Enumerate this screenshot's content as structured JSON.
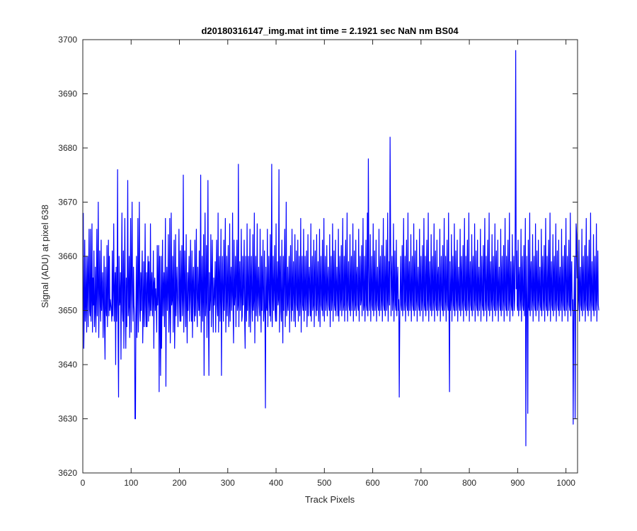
{
  "chart_data": {
    "type": "line",
    "title": "d20180316147_img.mat int time = 2.1921 sec  NaN nm BS04",
    "xlabel": "Track Pixels",
    "ylabel": "Signal (ADU) at pixel 638",
    "xlim": [
      0,
      1024
    ],
    "ylim": [
      3620,
      3700
    ],
    "xticks": [
      0,
      100,
      200,
      300,
      400,
      500,
      600,
      700,
      800,
      900,
      1000
    ],
    "yticks": [
      3620,
      3630,
      3640,
      3650,
      3660,
      3670,
      3680,
      3690,
      3700
    ],
    "grid": false,
    "legend": null,
    "series": [
      {
        "color": "#0000ff",
        "x_start": 1,
        "x_step": 1,
        "values": [
          3668,
          3643,
          3650,
          3663,
          3648,
          3651,
          3660,
          3646,
          3654,
          3660,
          3647,
          3656,
          3665,
          3650,
          3649,
          3665,
          3648,
          3652,
          3666,
          3646,
          3656,
          3651,
          3661,
          3647,
          3650,
          3658,
          3646,
          3652,
          3665,
          3649,
          3655,
          3670,
          3645,
          3653,
          3661,
          3651,
          3648,
          3663,
          3650,
          3654,
          3657,
          3645,
          3652,
          3660,
          3647,
          3641,
          3658,
          3651,
          3649,
          3662,
          3647,
          3654,
          3663,
          3649,
          3660,
          3650,
          3652,
          3651,
          3650,
          3648,
          3661,
          3649,
          3654,
          3666,
          3648,
          3653,
          3657,
          3640,
          3658,
          3648,
          3652,
          3676,
          3646,
          3634,
          3660,
          3651,
          3652,
          3657,
          3641,
          3656,
          3668,
          3650,
          3648,
          3661,
          3643,
          3654,
          3667,
          3651,
          3643,
          3656,
          3647,
          3655,
          3674,
          3649,
          3651,
          3660,
          3645,
          3655,
          3667,
          3646,
          3656,
          3670,
          3653,
          3648,
          3658,
          3651,
          3649,
          3658,
          3630,
          3651,
          3660,
          3645,
          3653,
          3667,
          3646,
          3655,
          3670,
          3650,
          3648,
          3657,
          3650,
          3656,
          3661,
          3644,
          3650,
          3659,
          3647,
          3652,
          3666,
          3651,
          3647,
          3657,
          3647,
          3655,
          3660,
          3648,
          3659,
          3652,
          3649,
          3666,
          3650,
          3654,
          3657,
          3649,
          3652,
          3661,
          3643,
          3655,
          3656,
          3650,
          3654,
          3651,
          3646,
          3662,
          3651,
          3654,
          3662,
          3635,
          3660,
          3649,
          3638,
          3660,
          3643,
          3652,
          3663,
          3649,
          3654,
          3657,
          3647,
          3655,
          3667,
          3636,
          3654,
          3658,
          3650,
          3654,
          3664,
          3646,
          3651,
          3667,
          3644,
          3650,
          3668,
          3651,
          3652,
          3660,
          3646,
          3655,
          3663,
          3643,
          3650,
          3664,
          3649,
          3654,
          3658,
          3652,
          3647,
          3655,
          3665,
          3652,
          3648,
          3661,
          3648,
          3654,
          3662,
          3649,
          3652,
          3675,
          3646,
          3654,
          3661,
          3652,
          3647,
          3664,
          3651,
          3644,
          3657,
          3650,
          3655,
          3660,
          3648,
          3653,
          3663,
          3652,
          3648,
          3661,
          3645,
          3655,
          3658,
          3651,
          3648,
          3663,
          3649,
          3654,
          3665,
          3650,
          3647,
          3658,
          3653,
          3650,
          3661,
          3649,
          3654,
          3675,
          3646,
          3652,
          3660,
          3648,
          3653,
          3664,
          3638,
          3655,
          3668,
          3649,
          3652,
          3662,
          3645,
          3655,
          3674,
          3649,
          3638,
          3657,
          3650,
          3652,
          3664,
          3647,
          3656,
          3663,
          3651,
          3646,
          3656,
          3651,
          3653,
          3659,
          3646,
          3655,
          3663,
          3651,
          3649,
          3668,
          3646,
          3656,
          3660,
          3648,
          3653,
          3665,
          3638,
          3654,
          3660,
          3652,
          3648,
          3663,
          3650,
          3656,
          3667,
          3646,
          3652,
          3660,
          3649,
          3655,
          3662,
          3647,
          3651,
          3666,
          3648,
          3655,
          3658,
          3650,
          3653,
          3668,
          3650,
          3644,
          3663,
          3651,
          3653,
          3660,
          3647,
          3656,
          3663,
          3650,
          3651,
          3677,
          3647,
          3655,
          3659,
          3650,
          3653,
          3665,
          3648,
          3649,
          3660,
          3651,
          3655,
          3663,
          3648,
          3643,
          3660,
          3652,
          3648,
          3666,
          3650,
          3654,
          3660,
          3647,
          3652,
          3665,
          3646,
          3655,
          3660,
          3651,
          3648,
          3664,
          3650,
          3652,
          3668,
          3644,
          3655,
          3660,
          3649,
          3653,
          3666,
          3648,
          3654,
          3658,
          3651,
          3649,
          3665,
          3652,
          3646,
          3660,
          3650,
          3655,
          3663,
          3648,
          3650,
          3661,
          3649,
          3632,
          3658,
          3651,
          3650,
          3665,
          3647,
          3654,
          3660,
          3652,
          3649,
          3664,
          3648,
          3655,
          3677,
          3647,
          3652,
          3660,
          3650,
          3654,
          3662,
          3650,
          3648,
          3666,
          3648,
          3654,
          3659,
          3651,
          3652,
          3676,
          3646,
          3655,
          3660,
          3650,
          3648,
          3663,
          3652,
          3644,
          3660,
          3650,
          3656,
          3665,
          3647,
          3653,
          3670,
          3649,
          3651,
          3658,
          3650,
          3654,
          3660,
          3646,
          3655,
          3662,
          3651,
          3648,
          3665,
          3650,
          3654,
          3659,
          3648,
          3652,
          3664,
          3647,
          3655,
          3661,
          3651,
          3650,
          3663,
          3648,
          3654,
          3660,
          3649,
          3652,
          3667,
          3646,
          3655,
          3660,
          3651,
          3650,
          3665,
          3648,
          3653,
          3660,
          3650,
          3654,
          3661,
          3647,
          3652,
          3664,
          3649,
          3655,
          3658,
          3652,
          3649,
          3666,
          3648,
          3654,
          3660,
          3650,
          3651,
          3663,
          3647,
          3656,
          3661,
          3651,
          3649,
          3664,
          3650,
          3654,
          3659,
          3648,
          3652,
          3665,
          3647,
          3655,
          3660,
          3651,
          3650,
          3663,
          3649,
          3653,
          3667,
          3648,
          3654,
          3660,
          3650,
          3652,
          3662,
          3649,
          3655,
          3658,
          3651,
          3650,
          3664,
          3647,
          3654,
          3660,
          3650,
          3652,
          3666,
          3648,
          3655,
          3661,
          3651,
          3650,
          3663,
          3649,
          3654,
          3658,
          3652,
          3649,
          3665,
          3648,
          3655,
          3660,
          3650,
          3652,
          3662,
          3649,
          3654,
          3667,
          3650,
          3651,
          3660,
          3648,
          3656,
          3663,
          3650,
          3652,
          3668,
          3648,
          3654,
          3659,
          3651,
          3650,
          3664,
          3649,
          3655,
          3660,
          3650,
          3652,
          3666,
          3648,
          3654,
          3661,
          3650,
          3651,
          3663,
          3649,
          3656,
          3658,
          3651,
          3650,
          3665,
          3648,
          3654,
          3660,
          3651,
          3652,
          3662,
          3649,
          3655,
          3667,
          3650,
          3651,
          3660,
          3648,
          3654,
          3663,
          3651,
          3650,
          3668,
          3649,
          3656,
          3659,
          3650,
          3652,
          3664,
          3648,
          3654,
          3660,
          3651,
          3650,
          3666,
          3649,
          3655,
          3661,
          3650,
          3652,
          3663,
          3648,
          3654,
          3658,
          3651,
          3650,
          3665,
          3649,
          3656,
          3660,
          3650,
          3652,
          3662,
          3648,
          3654,
          3667,
          3651,
          3650,
          3660,
          3649,
          3655,
          3663,
          3650,
          3652,
          3668,
          3648,
          3654,
          3659,
          3651,
          3650,
          3664,
          3649,
          3656,
          3660,
          3650,
          3652,
          3666,
          3648,
          3654,
          3661,
          3651,
          3650,
          3663,
          3649,
          3655,
          3658,
          3650,
          3652,
          3665,
          3648,
          3654,
          3660,
          3651,
          3650,
          3662,
          3649,
          3656,
          3667,
          3650,
          3652,
          3660,
          3648,
          3654,
          3663,
          3651,
          3650,
          3668,
          3649,
          3655,
          3659,
          3650,
          3652,
          3664,
          3648,
          3654,
          3660,
          3651,
          3650,
          3666,
          3649,
          3656,
          3661,
          3650,
          3652,
          3663,
          3648,
          3654,
          3658,
          3651,
          3650,
          3665,
          3649,
          3655,
          3660,
          3650,
          3652,
          3662,
          3648,
          3654,
          3667,
          3651,
          3650,
          3660,
          3649,
          3656,
          3663,
          3650,
          3652,
          3668,
          3648,
          3654,
          3659,
          3651,
          3650,
          3664,
          3649,
          3655,
          3660,
          3650,
          3652,
          3666,
          3648,
          3654,
          3661,
          3651,
          3650,
          3663,
          3649,
          3656,
          3658,
          3650,
          3652,
          3665,
          3648,
          3654,
          3660,
          3651,
          3650,
          3662,
          3649,
          3655,
          3667,
          3650,
          3652,
          3660,
          3648,
          3654,
          3663,
          3651,
          3650,
          3668,
          3649,
          3656,
          3659,
          3650,
          3652,
          3664,
          3648,
          3654,
          3660,
          3651,
          3650,
          3666,
          3649,
          3655,
          3661,
          3650,
          3652,
          3663,
          3648,
          3654,
          3658,
          3651,
          3650,
          3665,
          3649,
          3656,
          3660,
          3650,
          3652,
          3662,
          3648,
          3654,
          3667,
          3651,
          3650,
          3660,
          3649,
          3655,
          3663,
          3650,
          3652,
          3668,
          3648,
          3654,
          3659,
          3651,
          3650,
          3664,
          3649,
          3656,
          3660,
          3650,
          3652,
          3666,
          3648,
          3654,
          3661,
          3651,
          3650,
          3663,
          3649,
          3655,
          3658,
          3650,
          3652,
          3665,
          3648,
          3654,
          3660,
          3651,
          3650,
          3662,
          3649,
          3656,
          3667,
          3650,
          3652,
          3660,
          3648,
          3654,
          3663,
          3651,
          3650,
          3668,
          3649,
          3655,
          3659,
          3650,
          3652,
          3664,
          3648,
          3654,
          3660,
          3651,
          3650,
          3666,
          3649,
          3656,
          3661,
          3650,
          3652,
          3663,
          3648,
          3654,
          3658,
          3651,
          3650,
          3665,
          3649,
          3655,
          3660,
          3650,
          3652,
          3662,
          3648,
          3654,
          3667,
          3651,
          3650,
          3660,
          3649,
          3656,
          3663,
          3650,
          3652,
          3668,
          3648,
          3654,
          3659,
          3651,
          3650,
          3664,
          3649,
          3655,
          3660,
          3650,
          3652,
          3666,
          3648,
          3654,
          3661,
          3651,
          3650,
          3663,
          3649,
          3656,
          3658,
          3650,
          3652,
          3665,
          3648,
          3654,
          3660,
          3651,
          3650,
          3662,
          3649,
          3655,
          3667,
          3650,
          3652,
          3660,
          3648,
          3654,
          3663,
          3651,
          3650,
          3668,
          3649,
          3656,
          3659,
          3650,
          3652,
          3664,
          3648,
          3654,
          3660,
          3651,
          3650,
          3666,
          3649,
          3655,
          3661,
          3650,
          3652,
          3663,
          3648,
          3654,
          3658,
          3651,
          3650,
          3665,
          3649,
          3656,
          3660,
          3650,
          3652,
          3662,
          3648,
          3654,
          3667,
          3651,
          3650,
          3660,
          3649,
          3655,
          3663,
          3650,
          3652,
          3668,
          3648,
          3654,
          3659,
          3651,
          3650,
          3664,
          3649,
          3656,
          3660,
          3650,
          3652,
          3666,
          3648,
          3654,
          3661,
          3651,
          3650,
          3663,
          3649,
          3655,
          3658,
          3650,
          3652,
          3665,
          3648,
          3654,
          3660,
          3651,
          3650,
          3662,
          3649,
          3656,
          3667,
          3650,
          3652,
          3660,
          3648,
          3654,
          3663,
          3651,
          3650,
          3668,
          3649,
          3655,
          3659,
          3650,
          3652,
          3664,
          3648,
          3654,
          3660,
          3651,
          3650,
          3666,
          3649,
          3656,
          3661,
          3650,
          3652,
          3663,
          3648,
          3654,
          3658,
          3651,
          3650,
          3665,
          3649,
          3655,
          3660,
          3650,
          3652,
          3662,
          3648,
          3654,
          3667,
          3651,
          3650,
          3660,
          3649,
          3656,
          3663,
          3650,
          3652,
          3668,
          3648,
          3654,
          3659,
          3651,
          3650,
          3664,
          3649,
          3655,
          3660,
          3650,
          3652,
          3666,
          3648,
          3654,
          3661,
          3651,
          3650
        ]
      }
    ],
    "overrides": {
      "108": 3630,
      "591": 3678,
      "636": 3682,
      "655": 3634,
      "759": 3635,
      "896": 3698,
      "917": 3625,
      "921": 3631,
      "1015": 3629,
      "1019": 3630,
      "1022": 3664
    }
  }
}
